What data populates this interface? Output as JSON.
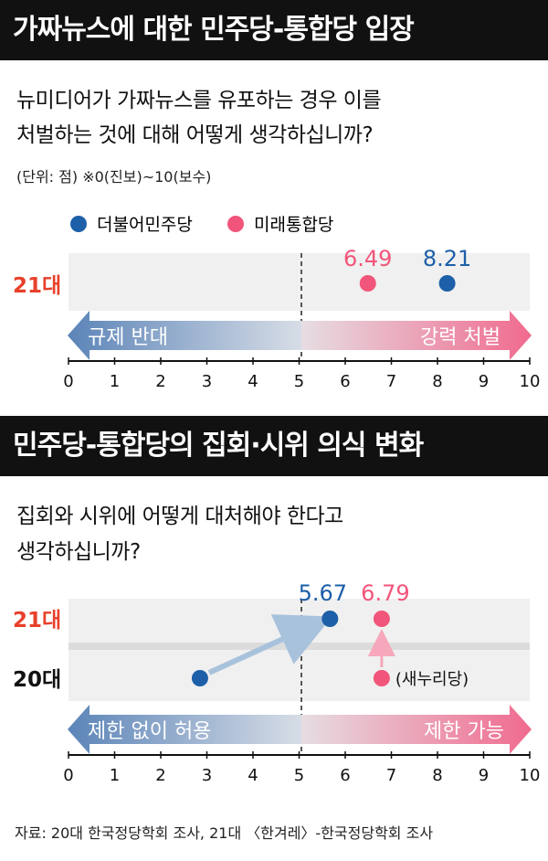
{
  "colors": {
    "democratic": "#1d5fa8",
    "unified": "#f2557a",
    "red_label": "#e8402a",
    "band": "#f0f0f0"
  },
  "section1": {
    "title": "가짜뉴스에 대한 민주당-통합당 입장",
    "question_line1": "뉴미디어가 가짜뉴스를 유포하는 경우 이를",
    "question_line2": "처벌하는 것에 대해 어떻게 생각하십니까?",
    "unit_note": "(단위: 점) ※0(진보)~10(보수)",
    "legend": [
      "더불어민주당",
      "미래통합당"
    ],
    "row_label": "21대",
    "arrow_left": "규제 반대",
    "arrow_right": "강력 처벌"
  },
  "section2": {
    "title": "민주당-통합당의 집회·시위 의식 변화",
    "question_line1": "집회와 시위에 어떻게 대처해야 한다고",
    "question_line2": "생각하십니까?",
    "row_labels": [
      "21대",
      "20대"
    ],
    "note_20_unified": "(새누리당)",
    "arrow_left": "제한 없이 허용",
    "arrow_right": "제한 가능"
  },
  "source": "자료: 20대 한국정당학회 조사, 21대 〈한겨레〉-한국정당학회 조사",
  "chart_data": [
    {
      "type": "scatter",
      "title": "가짜뉴스에 대한 민주당-통합당 입장",
      "xlim": [
        0,
        10
      ],
      "ticks": [
        0,
        1,
        2,
        3,
        4,
        5,
        6,
        7,
        8,
        9,
        10
      ],
      "series": [
        {
          "name": "더불어민주당",
          "x": 8.21,
          "label": "8.21"
        },
        {
          "name": "미래통합당",
          "x": 6.49,
          "label": "6.49"
        }
      ]
    },
    {
      "type": "scatter",
      "title": "민주당-통합당의 집회·시위 의식 변화",
      "xlim": [
        0,
        10
      ],
      "ticks": [
        0,
        1,
        2,
        3,
        4,
        5,
        6,
        7,
        8,
        9,
        10
      ],
      "series": [
        {
          "name": "더불어민주당",
          "x_20": 2.85,
          "x_21": 5.67,
          "label_21": "5.67"
        },
        {
          "name": "미래통합당",
          "x_20": 6.79,
          "x_21": 6.79,
          "label_21": "6.79"
        }
      ]
    }
  ]
}
